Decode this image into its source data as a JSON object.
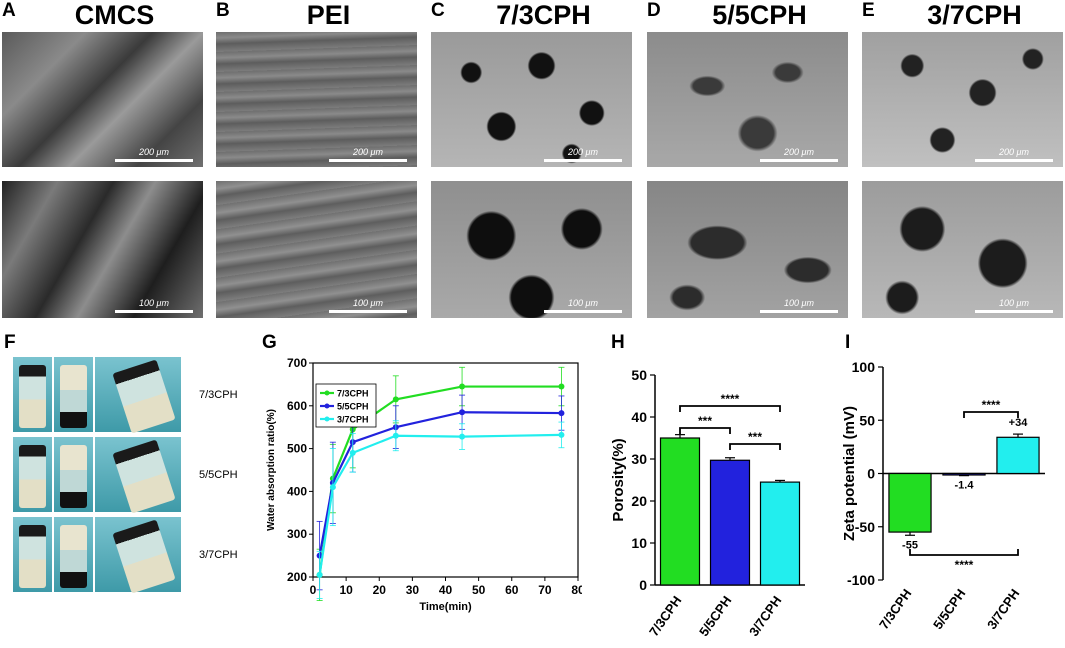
{
  "sem": {
    "panels": [
      {
        "letter": "A",
        "title": "CMCS",
        "scale_top": "200 μm",
        "scale_bottom": "100 μm"
      },
      {
        "letter": "B",
        "title": "PEI",
        "scale_top": "200 μm",
        "scale_bottom": "100 μm"
      },
      {
        "letter": "C",
        "title": "7/3CPH",
        "scale_top": "200 μm",
        "scale_bottom": "100 μm"
      },
      {
        "letter": "D",
        "title": "5/5CPH",
        "scale_top": "200 μm",
        "scale_bottom": "100 μm"
      },
      {
        "letter": "E",
        "title": "3/7CPH",
        "scale_top": "200 μm",
        "scale_bottom": "100 μm"
      }
    ]
  },
  "panel_f": {
    "letter": "F",
    "rows": [
      "7/3CPH",
      "5/5CPH",
      "3/7CPH"
    ]
  },
  "colors": {
    "green": "#22dd22",
    "blue": "#2222dd",
    "cyan": "#22eeee"
  },
  "chart_data": [
    {
      "panel": "G",
      "type": "line",
      "xlabel": "Time(min)",
      "ylabel": "Water absorption ratio(%)",
      "xlim": [
        0,
        80
      ],
      "ylim": [
        200,
        700
      ],
      "xticks": [
        0,
        10,
        20,
        30,
        40,
        50,
        60,
        70,
        80
      ],
      "yticks": [
        200,
        300,
        400,
        500,
        600,
        700
      ],
      "legend_position": "top-left",
      "x": [
        2,
        6,
        12,
        25,
        45,
        75
      ],
      "series": [
        {
          "name": "7/3CPH",
          "color": "#22dd22",
          "values": [
            205,
            430,
            545,
            615,
            645,
            645
          ],
          "errors": [
            60,
            80,
            90,
            55,
            45,
            45
          ]
        },
        {
          "name": "5/5CPH",
          "color": "#2222dd",
          "values": [
            250,
            420,
            515,
            550,
            585,
            583
          ],
          "errors": [
            80,
            95,
            70,
            50,
            40,
            40
          ]
        },
        {
          "name": "3/7CPH",
          "color": "#22eeee",
          "values": [
            205,
            410,
            490,
            530,
            528,
            532
          ],
          "errors": [
            55,
            90,
            45,
            35,
            30,
            30
          ]
        }
      ]
    },
    {
      "panel": "H",
      "type": "bar",
      "ylabel": "Porosity(%)",
      "ylim": [
        0,
        50
      ],
      "yticks": [
        0,
        10,
        20,
        30,
        40,
        50
      ],
      "categories": [
        "7/3CPH",
        "5/5CPH",
        "3/7CPH"
      ],
      "values": [
        35,
        29.7,
        24.5
      ],
      "errors": [
        0.8,
        0.6,
        0.4
      ],
      "colors": [
        "#22dd22",
        "#2222dd",
        "#22eeee"
      ],
      "significance": [
        {
          "from": 0,
          "to": 1,
          "label": "***"
        },
        {
          "from": 0,
          "to": 2,
          "label": "****"
        },
        {
          "from": 1,
          "to": 2,
          "label": "***"
        }
      ]
    },
    {
      "panel": "I",
      "type": "bar",
      "ylabel": "Zeta potential (mV)",
      "ylim": [
        -100,
        100
      ],
      "yticks": [
        -100,
        -50,
        0,
        50,
        100
      ],
      "categories": [
        "7/3CPH",
        "5/5CPH",
        "3/7CPH"
      ],
      "values": [
        -55,
        -1.4,
        34
      ],
      "value_labels": [
        "-55",
        "-1.4",
        "+34"
      ],
      "errors": [
        3,
        0.6,
        3
      ],
      "colors": [
        "#22dd22",
        "#2222dd",
        "#22eeee"
      ],
      "significance": [
        {
          "from": 1,
          "to": 2,
          "label": "****"
        },
        {
          "from": 0,
          "to": 2,
          "label": "****"
        }
      ]
    }
  ]
}
